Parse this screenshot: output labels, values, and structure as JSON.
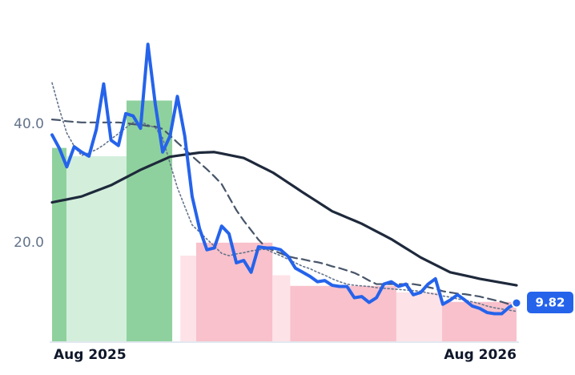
{
  "chart_data": {
    "type": "line",
    "categories": [
      "Aug 2025",
      null,
      null,
      null,
      null,
      null,
      null,
      null,
      null,
      null,
      null,
      null,
      null,
      null,
      null,
      null,
      null,
      null,
      null,
      null,
      null,
      null,
      null,
      null,
      null,
      null,
      null,
      null,
      null,
      null,
      null,
      null,
      null,
      null,
      null,
      null,
      null,
      null,
      null,
      null,
      null,
      null,
      null,
      null,
      null,
      null,
      null,
      null,
      null,
      null,
      null,
      null,
      null,
      null,
      null,
      null,
      null,
      null,
      null,
      null,
      null,
      null,
      null,
      "Aug 2026"
    ],
    "series": [
      {
        "color": "#2563eb",
        "style": "solid",
        "values": [
          38.2,
          35.9,
          32.8,
          36.2,
          35.3,
          34.6,
          39.1,
          46.8,
          37.3,
          36.4,
          41.8,
          41.4,
          39.3,
          53.5,
          43.4,
          35.3,
          38,
          44.7,
          38,
          27.8,
          22.4,
          18.8,
          19.1,
          22.8,
          21.5,
          16.6,
          17,
          15,
          19.3,
          19.1,
          19.1,
          18.8,
          17.7,
          15.7,
          15,
          14.3,
          13.4,
          13.6,
          12.8,
          12.6,
          12.6,
          10.7,
          10.9,
          9.9,
          10.7,
          13,
          13.4,
          12.6,
          13,
          11.2,
          11.6,
          13,
          13.9,
          9.6,
          10.3,
          11.2,
          10.3,
          9.3,
          8.9,
          8.2,
          8,
          8,
          9.1,
          9.82
        ]
      },
      {
        "color": "#1e293b",
        "style": "solid",
        "values": [
          26.8,
          27.05,
          27.3,
          27.55,
          27.8,
          28.28,
          28.75,
          29.23,
          29.7,
          30.35,
          31,
          31.65,
          32.3,
          32.85,
          33.4,
          33.95,
          34.5,
          34.68,
          34.85,
          35.03,
          35.2,
          35.25,
          35.3,
          35.05,
          34.8,
          34.55,
          34.3,
          33.68,
          33.05,
          32.43,
          31.8,
          30.98,
          30.15,
          29.33,
          28.5,
          27.7,
          26.9,
          26.1,
          25.3,
          24.78,
          24.25,
          23.73,
          23.2,
          22.55,
          21.9,
          21.25,
          20.6,
          19.83,
          19.05,
          18.28,
          17.5,
          16.88,
          16.25,
          15.63,
          15,
          14.73,
          14.45,
          14.18,
          13.9,
          13.68,
          13.46,
          13.24,
          13.02,
          12.8
        ]
      },
      {
        "color": "#475569",
        "style": "dashed",
        "values": [
          40.8,
          40.7,
          40.5,
          40.4,
          40.3,
          40.3,
          40.3,
          40.3,
          40.3,
          40.3,
          40.2,
          40,
          39.9,
          39.7,
          39.6,
          39.2,
          38.1,
          36.9,
          35.8,
          34.6,
          33.5,
          32.4,
          31.2,
          29.9,
          27.7,
          25.5,
          23.7,
          22.1,
          20.5,
          19.2,
          18.7,
          18.2,
          17.7,
          17.4,
          17.2,
          16.9,
          16.7,
          16.4,
          16,
          15.7,
          15.3,
          14.9,
          14.3,
          13.6,
          13,
          13,
          13,
          13,
          13,
          13,
          12.8,
          12.5,
          12.2,
          11.8,
          11.6,
          11.4,
          11.3,
          11.1,
          10.9,
          10.6,
          10.3,
          10,
          9.6,
          9.3
        ]
      },
      {
        "color": "#64748b",
        "style": "dotted",
        "values": [
          47,
          42.5,
          38.5,
          36.3,
          34.7,
          35.2,
          35.7,
          36.5,
          37.5,
          38.4,
          39.4,
          40.3,
          40.4,
          39.9,
          39.4,
          37.7,
          33.4,
          29.3,
          26.1,
          23,
          21.8,
          20.6,
          19.4,
          18.2,
          17.8,
          18.1,
          18.3,
          18.6,
          18.8,
          18.9,
          18.3,
          17.8,
          17.2,
          16.6,
          16,
          15.6,
          15,
          14.5,
          13.9,
          13.4,
          13,
          12.8,
          12.7,
          12.6,
          12.4,
          12.3,
          12.2,
          12.1,
          12,
          11.9,
          11.8,
          11.5,
          11.3,
          11,
          10.8,
          10.5,
          10.3,
          10,
          9.7,
          9.3,
          9,
          8.8,
          8.6,
          8.4
        ]
      }
    ],
    "bands": [
      {
        "start": 0,
        "end": 1.96,
        "value": 36,
        "color": "#8fd19e"
      },
      {
        "start": 1.96,
        "end": 10.1,
        "value": 34.6,
        "color": "#d3efdc"
      },
      {
        "start": 10.1,
        "end": 16.3,
        "value": 44,
        "color": "#8fd19e"
      },
      {
        "start": 17.4,
        "end": 19.55,
        "value": 17.8,
        "color": "#fde2e7"
      },
      {
        "start": 19.55,
        "end": 29.9,
        "value": 20,
        "color": "#f8c1cb"
      },
      {
        "start": 29.9,
        "end": 32.3,
        "value": 14.5,
        "color": "#fde2e7"
      },
      {
        "start": 32.3,
        "end": 46.7,
        "value": 12.7,
        "color": "#f8c1cb"
      },
      {
        "start": 46.7,
        "end": 52.9,
        "value": 11.6,
        "color": "#fde2e7"
      },
      {
        "start": 52.9,
        "end": 63,
        "value": 10,
        "color": "#f8c1cb"
      }
    ],
    "ylim": [
      3.2,
      58
    ],
    "yticks": [
      {
        "value": 20,
        "label": "20.0"
      },
      {
        "value": 40,
        "label": "40.0"
      }
    ],
    "grid": false
  }
}
